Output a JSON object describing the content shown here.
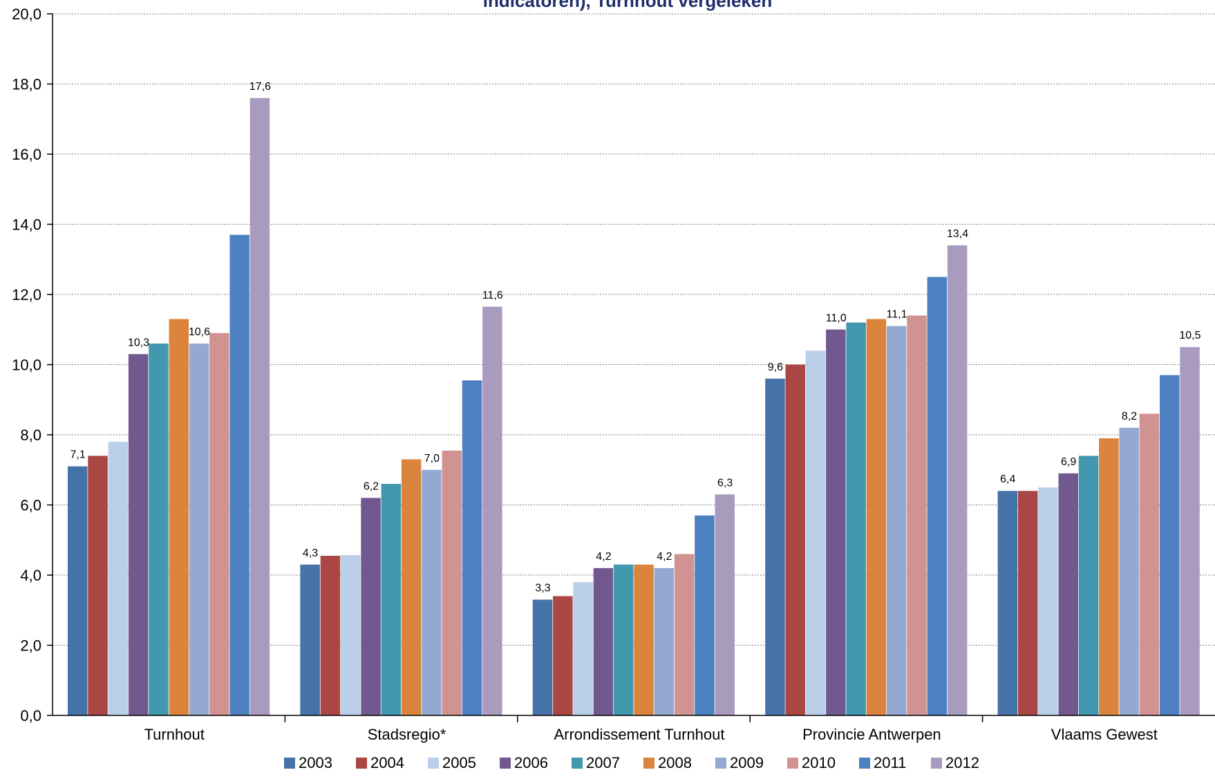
{
  "chart_data": {
    "type": "bar",
    "title": "indicatoren), Turnhout vergeleken",
    "xlabel": "",
    "ylabel": "",
    "ylim": [
      0,
      20
    ],
    "ytick_step": 2,
    "ytick_labels": [
      "0,0",
      "2,0",
      "4,0",
      "6,0",
      "8,0",
      "10,0",
      "12,0",
      "14,0",
      "16,0",
      "18,0",
      "20,0"
    ],
    "grid": true,
    "legend_placement": "bottom",
    "categories": [
      "Turnhout",
      "Stadsregio*",
      "Arrondissement Turnhout",
      "Provincie Antwerpen",
      "Vlaams Gewest"
    ],
    "series": [
      {
        "name": "2003",
        "color": "#4572a7",
        "values": [
          7.1,
          4.3,
          3.3,
          9.6,
          6.4
        ]
      },
      {
        "name": "2004",
        "color": "#aa4643",
        "values": [
          7.4,
          4.55,
          3.4,
          10.0,
          6.4
        ]
      },
      {
        "name": "2005",
        "color": "#bccfe8",
        "values": [
          7.8,
          4.57,
          3.8,
          10.4,
          6.5
        ]
      },
      {
        "name": "2006",
        "color": "#71588f",
        "values": [
          10.3,
          6.2,
          4.2,
          11.0,
          6.9
        ]
      },
      {
        "name": "2007",
        "color": "#4198af",
        "values": [
          10.6,
          6.6,
          4.3,
          11.2,
          7.4
        ]
      },
      {
        "name": "2008",
        "color": "#db843d",
        "values": [
          11.3,
          7.3,
          4.3,
          11.3,
          7.9
        ]
      },
      {
        "name": "2009",
        "color": "#93a9cf",
        "values": [
          10.6,
          7.0,
          4.2,
          11.1,
          8.2
        ]
      },
      {
        "name": "2010",
        "color": "#d19392",
        "values": [
          10.9,
          7.55,
          4.6,
          11.4,
          8.6
        ]
      },
      {
        "name": "2011",
        "color": "#4d80c0",
        "values": [
          13.7,
          9.55,
          5.7,
          12.5,
          9.7
        ]
      },
      {
        "name": "2012",
        "color": "#a99bbd",
        "values": [
          17.6,
          11.65,
          6.3,
          13.4,
          10.5
        ]
      }
    ],
    "data_labels": [
      {
        "category": 0,
        "series": 0,
        "text": "7,1"
      },
      {
        "category": 0,
        "series": 3,
        "text": "10,3"
      },
      {
        "category": 0,
        "series": 6,
        "text": "10,6"
      },
      {
        "category": 0,
        "series": 9,
        "text": "17,6"
      },
      {
        "category": 1,
        "series": 0,
        "text": "4,3"
      },
      {
        "category": 1,
        "series": 3,
        "text": "6,2"
      },
      {
        "category": 1,
        "series": 6,
        "text": "7,0"
      },
      {
        "category": 1,
        "series": 9,
        "text": "11,6"
      },
      {
        "category": 2,
        "series": 0,
        "text": "3,3"
      },
      {
        "category": 2,
        "series": 3,
        "text": "4,2"
      },
      {
        "category": 2,
        "series": 6,
        "text": "4,2"
      },
      {
        "category": 2,
        "series": 9,
        "text": "6,3"
      },
      {
        "category": 3,
        "series": 0,
        "text": "9,6"
      },
      {
        "category": 3,
        "series": 3,
        "text": "11,0"
      },
      {
        "category": 3,
        "series": 6,
        "text": "11,1"
      },
      {
        "category": 3,
        "series": 9,
        "text": "13,4"
      },
      {
        "category": 4,
        "series": 0,
        "text": "6,4"
      },
      {
        "category": 4,
        "series": 3,
        "text": "6,9"
      },
      {
        "category": 4,
        "series": 6,
        "text": "8,2"
      },
      {
        "category": 4,
        "series": 9,
        "text": "10,5"
      }
    ]
  }
}
